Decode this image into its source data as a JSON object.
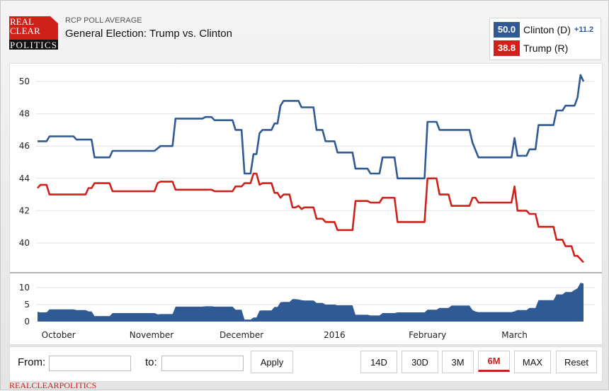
{
  "header": {
    "logo_text": [
      "REAL",
      "CLEAR",
      "POLITICS"
    ],
    "kicker": "RCP POLL AVERAGE",
    "title": "General Election: Trump vs. Clinton"
  },
  "legend": [
    {
      "value": "50.0",
      "name": "Clinton (D)",
      "spread": "+11.2",
      "color": "#2f5a93"
    },
    {
      "value": "38.8",
      "name": "Trump (R)",
      "spread": "",
      "color": "#d0201a"
    }
  ],
  "controls": {
    "from_label": "From:",
    "from_value": "",
    "to_label": "to:",
    "to_value": "",
    "apply_label": "Apply",
    "ranges": [
      "14D",
      "30D",
      "3M",
      "6M",
      "MAX"
    ],
    "active_range": "6M",
    "reset_label": "Reset"
  },
  "footer": "REALCLEARPOLITICS",
  "chart_data": {
    "type": "line",
    "title": "",
    "xlabel": "",
    "ylabel": "",
    "x_ticks": [
      {
        "label": "October",
        "date": "2015-10-01"
      },
      {
        "label": "November",
        "date": "2015-11-01"
      },
      {
        "label": "December",
        "date": "2015-12-01"
      },
      {
        "label": "2016",
        "date": "2016-01-01"
      },
      {
        "label": "February",
        "date": "2016-02-01"
      },
      {
        "label": "March",
        "date": "2016-03-01"
      }
    ],
    "xlim": [
      "2015-09-24",
      "2016-03-24"
    ],
    "ylim": [
      38,
      51
    ],
    "y_ticks": [
      40,
      42,
      44,
      46,
      48,
      50
    ],
    "grid": true,
    "series": [
      {
        "name": "Clinton (D)",
        "color": "#2f5a93",
        "points": [
          [
            "2015-09-24",
            46.3
          ],
          [
            "2015-09-27",
            46.3
          ],
          [
            "2015-09-28",
            46.6
          ],
          [
            "2015-10-06",
            46.6
          ],
          [
            "2015-10-07",
            46.4
          ],
          [
            "2015-10-12",
            46.4
          ],
          [
            "2015-10-13",
            45.3
          ],
          [
            "2015-10-18",
            45.3
          ],
          [
            "2015-10-19",
            45.7
          ],
          [
            "2015-11-02",
            45.7
          ],
          [
            "2015-11-04",
            46.0
          ],
          [
            "2015-11-08",
            46.0
          ],
          [
            "2015-11-09",
            47.7
          ],
          [
            "2015-11-18",
            47.7
          ],
          [
            "2015-11-19",
            47.8
          ],
          [
            "2015-11-21",
            47.8
          ],
          [
            "2015-11-22",
            47.6
          ],
          [
            "2015-11-28",
            47.6
          ],
          [
            "2015-11-29",
            47.0
          ],
          [
            "2015-12-01",
            47.0
          ],
          [
            "2015-12-02",
            44.3
          ],
          [
            "2015-12-04",
            44.3
          ],
          [
            "2015-12-05",
            45.5
          ],
          [
            "2015-12-06",
            45.5
          ],
          [
            "2015-12-07",
            46.8
          ],
          [
            "2015-12-08",
            47.0
          ],
          [
            "2015-12-11",
            47.0
          ],
          [
            "2015-12-12",
            47.4
          ],
          [
            "2015-12-13",
            47.4
          ],
          [
            "2015-12-14",
            48.5
          ],
          [
            "2015-12-15",
            48.8
          ],
          [
            "2015-12-20",
            48.8
          ],
          [
            "2015-12-21",
            48.4
          ],
          [
            "2015-12-25",
            48.4
          ],
          [
            "2015-12-26",
            47.0
          ],
          [
            "2015-12-28",
            47.0
          ],
          [
            "2015-12-29",
            46.3
          ],
          [
            "2016-01-01",
            46.3
          ],
          [
            "2016-01-02",
            45.6
          ],
          [
            "2016-01-07",
            45.6
          ],
          [
            "2016-01-08",
            44.6
          ],
          [
            "2016-01-12",
            44.6
          ],
          [
            "2016-01-13",
            44.3
          ],
          [
            "2016-01-16",
            44.3
          ],
          [
            "2016-01-17",
            45.3
          ],
          [
            "2016-01-21",
            45.3
          ],
          [
            "2016-01-22",
            44.0
          ],
          [
            "2016-01-31",
            44.0
          ],
          [
            "2016-02-01",
            47.5
          ],
          [
            "2016-02-04",
            47.5
          ],
          [
            "2016-02-05",
            47.0
          ],
          [
            "2016-02-15",
            47.0
          ],
          [
            "2016-02-16",
            46.2
          ],
          [
            "2016-02-18",
            45.3
          ],
          [
            "2016-02-29",
            45.3
          ],
          [
            "2016-03-01",
            46.5
          ],
          [
            "2016-03-02",
            45.4
          ],
          [
            "2016-03-05",
            45.4
          ],
          [
            "2016-03-06",
            45.8
          ],
          [
            "2016-03-08",
            45.8
          ],
          [
            "2016-03-09",
            47.3
          ],
          [
            "2016-03-14",
            47.3
          ],
          [
            "2016-03-15",
            48.2
          ],
          [
            "2016-03-17",
            48.2
          ],
          [
            "2016-03-18",
            48.5
          ],
          [
            "2016-03-21",
            48.5
          ],
          [
            "2016-03-22",
            49.0
          ],
          [
            "2016-03-23",
            50.4
          ],
          [
            "2016-03-24",
            50.0
          ]
        ]
      },
      {
        "name": "Trump (R)",
        "color": "#d0201a",
        "points": [
          [
            "2015-09-24",
            43.4
          ],
          [
            "2015-09-25",
            43.6
          ],
          [
            "2015-09-27",
            43.6
          ],
          [
            "2015-09-28",
            43.0
          ],
          [
            "2015-10-10",
            43.0
          ],
          [
            "2015-10-11",
            43.4
          ],
          [
            "2015-10-12",
            43.4
          ],
          [
            "2015-10-13",
            43.7
          ],
          [
            "2015-10-18",
            43.7
          ],
          [
            "2015-10-19",
            43.2
          ],
          [
            "2015-11-02",
            43.2
          ],
          [
            "2015-11-03",
            43.7
          ],
          [
            "2015-11-04",
            43.8
          ],
          [
            "2015-11-08",
            43.8
          ],
          [
            "2015-11-09",
            43.3
          ],
          [
            "2015-11-21",
            43.3
          ],
          [
            "2015-11-22",
            43.2
          ],
          [
            "2015-11-28",
            43.2
          ],
          [
            "2015-11-29",
            43.5
          ],
          [
            "2015-12-01",
            43.5
          ],
          [
            "2015-12-02",
            43.7
          ],
          [
            "2015-12-04",
            43.7
          ],
          [
            "2015-12-05",
            44.3
          ],
          [
            "2015-12-06",
            44.3
          ],
          [
            "2015-12-07",
            43.6
          ],
          [
            "2015-12-08",
            43.7
          ],
          [
            "2015-12-11",
            43.7
          ],
          [
            "2015-12-12",
            43.1
          ],
          [
            "2015-12-13",
            43.1
          ],
          [
            "2015-12-14",
            42.8
          ],
          [
            "2015-12-15",
            43.0
          ],
          [
            "2015-12-17",
            43.0
          ],
          [
            "2015-12-18",
            42.2
          ],
          [
            "2015-12-19",
            42.2
          ],
          [
            "2015-12-20",
            42.3
          ],
          [
            "2015-12-21",
            42.1
          ],
          [
            "2015-12-22",
            42.2
          ],
          [
            "2015-12-25",
            42.2
          ],
          [
            "2015-12-26",
            41.5
          ],
          [
            "2015-12-28",
            41.5
          ],
          [
            "2015-12-29",
            41.3
          ],
          [
            "2016-01-01",
            41.3
          ],
          [
            "2016-01-02",
            40.8
          ],
          [
            "2016-01-07",
            40.8
          ],
          [
            "2016-01-08",
            42.6
          ],
          [
            "2016-01-12",
            42.6
          ],
          [
            "2016-01-13",
            42.5
          ],
          [
            "2016-01-16",
            42.5
          ],
          [
            "2016-01-17",
            42.8
          ],
          [
            "2016-01-21",
            42.8
          ],
          [
            "2016-01-22",
            41.3
          ],
          [
            "2016-01-31",
            41.3
          ],
          [
            "2016-02-01",
            44.0
          ],
          [
            "2016-02-04",
            44.0
          ],
          [
            "2016-02-05",
            43.0
          ],
          [
            "2016-02-08",
            43.0
          ],
          [
            "2016-02-09",
            42.3
          ],
          [
            "2016-02-15",
            42.3
          ],
          [
            "2016-02-16",
            42.8
          ],
          [
            "2016-02-17",
            42.8
          ],
          [
            "2016-02-18",
            42.5
          ],
          [
            "2016-02-29",
            42.5
          ],
          [
            "2016-03-01",
            43.5
          ],
          [
            "2016-03-02",
            42.0
          ],
          [
            "2016-03-05",
            42.0
          ],
          [
            "2016-03-06",
            41.8
          ],
          [
            "2016-03-08",
            41.8
          ],
          [
            "2016-03-09",
            41.0
          ],
          [
            "2016-03-14",
            41.0
          ],
          [
            "2016-03-15",
            40.2
          ],
          [
            "2016-03-17",
            40.2
          ],
          [
            "2016-03-18",
            39.8
          ],
          [
            "2016-03-20",
            39.8
          ],
          [
            "2016-03-21",
            39.2
          ],
          [
            "2016-03-22",
            39.2
          ],
          [
            "2016-03-24",
            38.8
          ]
        ]
      }
    ],
    "spread_panel": {
      "type": "area",
      "color": "#2f5a93",
      "ylim": [
        0,
        12
      ],
      "y_ticks": [
        0,
        5,
        10
      ],
      "values": "Clinton (D) minus Trump (R)"
    }
  }
}
